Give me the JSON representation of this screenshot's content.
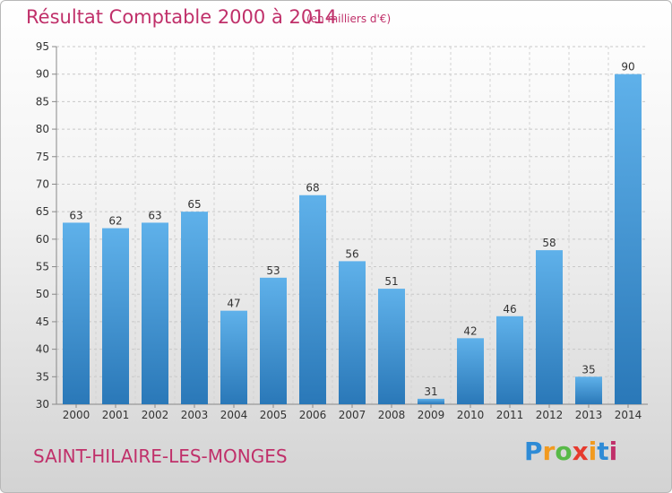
{
  "header": {
    "title": "Résultat Comptable 2000 à 2014",
    "subtitle": "(en milliers d'€)"
  },
  "footer": {
    "commune": "SAINT-HILAIRE-LES-MONGES",
    "logo": {
      "letters": [
        "P",
        "r",
        "o",
        "x",
        "i",
        "t",
        "i"
      ],
      "colors": [
        "#2e8bd6",
        "#f29a1f",
        "#57b947",
        "#e63a2e",
        "#f29a1f",
        "#2e8bd6",
        "#c0306a"
      ]
    }
  },
  "chart_data": {
    "type": "bar",
    "categories": [
      "2000",
      "2001",
      "2002",
      "2003",
      "2004",
      "2005",
      "2006",
      "2007",
      "2008",
      "2009",
      "2010",
      "2011",
      "2012",
      "2013",
      "2014"
    ],
    "values": [
      63,
      62,
      63,
      65,
      47,
      53,
      68,
      56,
      51,
      31,
      42,
      46,
      58,
      35,
      90
    ],
    "ylim": [
      30,
      95
    ],
    "yticks": [
      30,
      35,
      40,
      45,
      50,
      55,
      60,
      65,
      70,
      75,
      80,
      85,
      90,
      95
    ],
    "grid": true,
    "bar_color": "#3a91d4"
  }
}
